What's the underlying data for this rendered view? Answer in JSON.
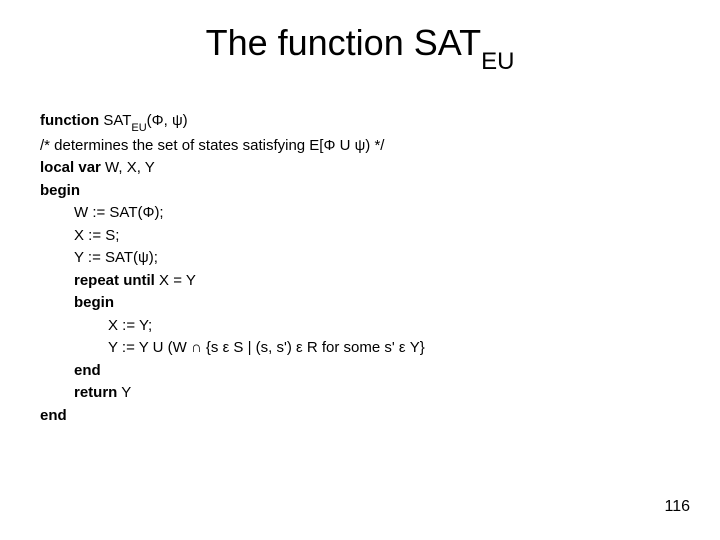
{
  "title": {
    "prefix": "The function SAT",
    "suffix": "EU",
    "fontsize": 36,
    "sub_fontsize": 24,
    "color": "#000000"
  },
  "body": {
    "fontsize": 15,
    "color": "#000000",
    "lines": [
      {
        "indent": 0,
        "parts": [
          {
            "t": "function",
            "b": true
          },
          {
            "t": " SAT"
          },
          {
            "t": "EU",
            "sub": true
          },
          {
            "t": "(Φ, ψ)"
          }
        ]
      },
      {
        "indent": 0,
        "parts": [
          {
            "t": "/* determines the set of states satisfying E[Φ U ψ) */"
          }
        ]
      },
      {
        "indent": 0,
        "parts": [
          {
            "t": "local var",
            "b": true
          },
          {
            "t": " W, X, Y"
          }
        ]
      },
      {
        "indent": 0,
        "parts": [
          {
            "t": "begin",
            "b": true
          }
        ]
      },
      {
        "indent": 1,
        "parts": [
          {
            "t": "W := SAT(Φ);"
          }
        ]
      },
      {
        "indent": 1,
        "parts": [
          {
            "t": "X := S;"
          }
        ]
      },
      {
        "indent": 1,
        "parts": [
          {
            "t": "Y := SAT(ψ);"
          }
        ]
      },
      {
        "indent": 1,
        "parts": [
          {
            "t": "repeat until",
            "b": true
          },
          {
            "t": " X = Y"
          }
        ]
      },
      {
        "indent": 1,
        "parts": [
          {
            "t": "begin",
            "b": true
          }
        ]
      },
      {
        "indent": 2,
        "parts": [
          {
            "t": "X := Y;"
          }
        ]
      },
      {
        "indent": 2,
        "parts": [
          {
            "t": "Y := Y U (W ∩ {s ε S | (s, s') ε R for some s' ε Y}"
          }
        ]
      },
      {
        "indent": 1,
        "parts": [
          {
            "t": "end",
            "b": true
          }
        ]
      },
      {
        "indent": 1,
        "parts": [
          {
            "t": "return",
            "b": true
          },
          {
            "t": " Y"
          }
        ]
      },
      {
        "indent": 0,
        "parts": [
          {
            "t": "end",
            "b": true
          }
        ]
      }
    ]
  },
  "page_number": "116",
  "background_color": "#ffffff"
}
